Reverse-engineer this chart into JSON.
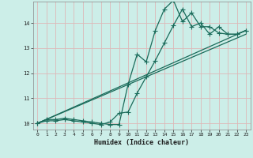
{
  "xlabel": "Humidex (Indice chaleur)",
  "bg_color": "#cceee8",
  "grid_color": "#ddb8b8",
  "line_color": "#1a6b5a",
  "xlim": [
    -0.5,
    23.5
  ],
  "ylim": [
    9.75,
    14.85
  ],
  "xticks": [
    0,
    1,
    2,
    3,
    4,
    5,
    6,
    7,
    8,
    9,
    10,
    11,
    12,
    13,
    14,
    15,
    16,
    17,
    18,
    19,
    20,
    21,
    22,
    23
  ],
  "yticks": [
    10,
    11,
    12,
    13,
    14
  ],
  "line1_x": [
    0,
    1,
    2,
    3,
    4,
    5,
    6,
    7,
    8,
    9,
    10,
    11,
    12,
    13,
    14,
    15,
    16,
    17,
    18,
    19,
    20,
    21,
    22,
    23
  ],
  "line1_y": [
    10.0,
    10.15,
    10.15,
    10.2,
    10.15,
    10.1,
    10.05,
    10.0,
    9.95,
    9.95,
    11.55,
    12.75,
    12.45,
    13.7,
    14.55,
    14.9,
    14.05,
    14.4,
    13.85,
    13.85,
    13.6,
    13.55,
    13.55,
    13.7
  ],
  "line2_x": [
    0,
    1,
    2,
    3,
    4,
    5,
    6,
    7,
    8,
    9,
    10,
    11,
    12,
    13,
    14,
    15,
    16,
    17,
    18,
    19,
    20,
    21,
    22,
    23
  ],
  "line2_y": [
    10.0,
    10.1,
    10.1,
    10.15,
    10.1,
    10.05,
    10.0,
    9.95,
    10.05,
    10.4,
    10.45,
    11.2,
    11.85,
    12.5,
    13.2,
    13.9,
    14.55,
    13.85,
    14.0,
    13.55,
    13.85,
    13.55,
    13.55,
    13.7
  ],
  "line3_x": [
    0,
    23
  ],
  "line3_y": [
    10.0,
    13.7
  ],
  "line4_x": [
    0,
    23
  ],
  "line4_y": [
    10.0,
    13.55
  ]
}
